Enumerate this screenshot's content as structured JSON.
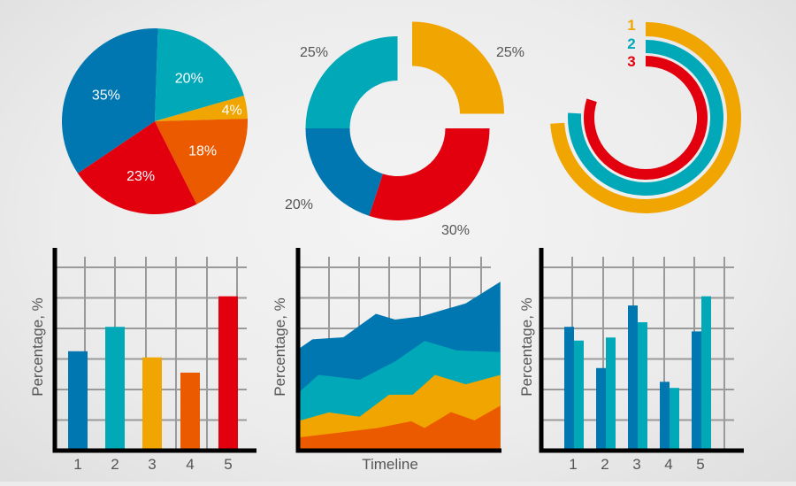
{
  "colors": {
    "dark_blue": "#0077b0",
    "teal": "#00a8b8",
    "yellow": "#f0a500",
    "orange": "#ec5a00",
    "red": "#e2000f",
    "text": "#555555"
  },
  "chart_data": [
    {
      "type": "pie",
      "slices": [
        {
          "label": "20%",
          "value": 20,
          "color": "#00a8b8"
        },
        {
          "label": "4%",
          "value": 4,
          "color": "#f0a500"
        },
        {
          "label": "18%",
          "value": 18,
          "color": "#ec5a00"
        },
        {
          "label": "23%",
          "value": 23,
          "color": "#e2000f"
        },
        {
          "label": "35%",
          "value": 35,
          "color": "#0077b0"
        }
      ]
    },
    {
      "type": "donut",
      "slices": [
        {
          "label": "25%",
          "value": 25,
          "color": "#f0a500",
          "exploded": true
        },
        {
          "label": "30%",
          "value": 30,
          "color": "#e2000f"
        },
        {
          "label": "20%",
          "value": 20,
          "color": "#0077b0"
        },
        {
          "label": "25%",
          "value": 25,
          "color": "#00a8b8"
        }
      ]
    },
    {
      "type": "radial-bar",
      "series": [
        {
          "name": "1",
          "value": 74,
          "color": "#f0a500"
        },
        {
          "name": "2",
          "value": 76,
          "color": "#00a8b8"
        },
        {
          "name": "3",
          "value": 80,
          "color": "#e2000f"
        }
      ],
      "unit": "percent of full circle"
    },
    {
      "type": "bar",
      "categories": [
        "1",
        "2",
        "3",
        "4",
        "5"
      ],
      "values": [
        3.2,
        4.0,
        3.0,
        2.5,
        5.0
      ],
      "colors": [
        "#0077b0",
        "#00a8b8",
        "#f0a500",
        "#ec5a00",
        "#e2000f"
      ],
      "ylabel": "Percentage, %",
      "ylim": [
        0,
        6.6
      ],
      "y_unit": "gridline steps",
      "grid": true
    },
    {
      "type": "area",
      "stacked": true,
      "xlabel": "Timeline",
      "ylabel": "Percentage, %",
      "ylim": [
        0,
        6.6
      ],
      "y_unit": "gridline steps",
      "grid": true,
      "series": [
        {
          "color": "#ec5a00",
          "points": [
            [
              0,
              0.43
            ],
            [
              2.59,
              0.74
            ],
            [
              3.7,
              0.96
            ],
            [
              4.14,
              0.74
            ],
            [
              5.01,
              1.26
            ],
            [
              5.78,
              0.99
            ],
            [
              6.63,
              1.47
            ]
          ]
        },
        {
          "color": "#f0a500",
          "points": [
            [
              0,
              0.97
            ],
            [
              0.99,
              1.25
            ],
            [
              2.0,
              1.11
            ],
            [
              2.97,
              1.83
            ],
            [
              3.75,
              1.83
            ],
            [
              4.48,
              2.48
            ],
            [
              5.49,
              2.17
            ],
            [
              6.63,
              2.48
            ]
          ]
        },
        {
          "color": "#00a8b8",
          "points": [
            [
              0,
              1.9
            ],
            [
              0.65,
              2.48
            ],
            [
              2.0,
              2.32
            ],
            [
              3.17,
              2.92
            ],
            [
              4.14,
              3.59
            ],
            [
              5.2,
              3.28
            ],
            [
              6.63,
              3.23
            ]
          ]
        },
        {
          "color": "#0077b0",
          "points": [
            [
              0,
              3.33
            ],
            [
              0.45,
              3.64
            ],
            [
              1.47,
              3.71
            ],
            [
              2.54,
              4.48
            ],
            [
              3.17,
              4.29
            ],
            [
              4.04,
              4.4
            ],
            [
              5.49,
              4.82
            ],
            [
              6.63,
              5.53
            ]
          ]
        }
      ]
    },
    {
      "type": "bar",
      "grouped": true,
      "categories": [
        "1",
        "2",
        "3",
        "4",
        "5"
      ],
      "series": [
        {
          "color": "#0077b0",
          "values": [
            4.0,
            2.65,
            4.7,
            2.2,
            3.85
          ]
        },
        {
          "color": "#00a8b8",
          "values": [
            3.55,
            3.65,
            4.15,
            2.0,
            5.0
          ]
        }
      ],
      "ylabel": "Percentage, %",
      "ylim": [
        0,
        6.6
      ],
      "y_unit": "gridline steps",
      "grid": true
    }
  ]
}
